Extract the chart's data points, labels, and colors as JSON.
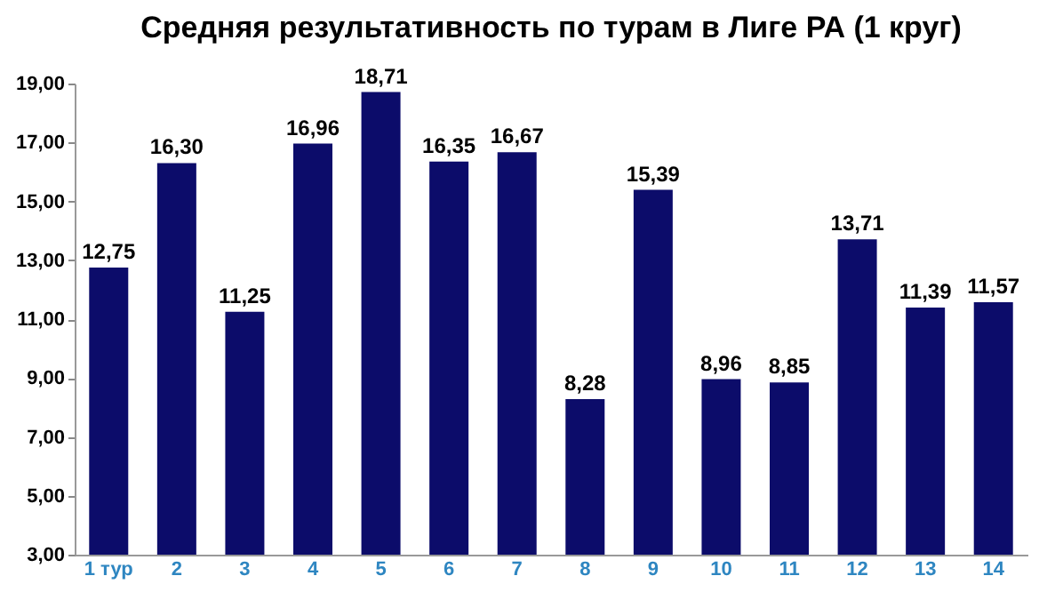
{
  "chart_data": {
    "type": "bar",
    "title": "Средняя результативность по турам в Лиге РА (1 круг)",
    "categories": [
      "1 тур",
      "2",
      "3",
      "4",
      "5",
      "6",
      "7",
      "8",
      "9",
      "10",
      "11",
      "12",
      "13",
      "14"
    ],
    "values": [
      12.75,
      16.3,
      11.25,
      16.96,
      18.71,
      16.35,
      16.67,
      8.28,
      15.39,
      8.96,
      8.85,
      13.71,
      11.39,
      11.57
    ],
    "value_labels": [
      "12,75",
      "16,30",
      "11,25",
      "16,96",
      "18,71",
      "16,35",
      "16,67",
      "8,28",
      "15,39",
      "8,96",
      "8,85",
      "13,71",
      "11,39",
      "11,57"
    ],
    "color": "#0c0c6a",
    "ylim": [
      3,
      19
    ],
    "yticks": [
      {
        "value": 3,
        "label": "3,00"
      },
      {
        "value": 5,
        "label": "5,00"
      },
      {
        "value": 7,
        "label": "7,00"
      },
      {
        "value": 9,
        "label": "9,00"
      },
      {
        "value": 11,
        "label": "11,00"
      },
      {
        "value": 13,
        "label": "13,00"
      },
      {
        "value": 15,
        "label": "15,00"
      },
      {
        "value": 17,
        "label": "17,00"
      },
      {
        "value": 19,
        "label": "19,00"
      }
    ],
    "grid": false
  }
}
